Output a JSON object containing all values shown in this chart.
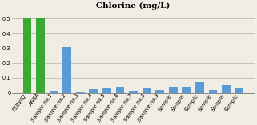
{
  "title": "Chlorine (mg/L)",
  "categories": [
    "PSDWQ",
    "ANSA",
    "Sample no.1",
    "Sample no.2",
    "Sample no.3",
    "Sample no.4",
    "Sample no.5",
    "Sample no.6",
    "Sample no.7",
    "Sample no.8",
    "Sample no.9",
    "Sample",
    "Sample",
    "Sample",
    "Sample",
    "Sample",
    "Sample"
  ],
  "values": [
    0.51,
    0.51,
    0.015,
    0.31,
    0.01,
    0.025,
    0.03,
    0.04,
    0.015,
    0.03,
    0.02,
    0.04,
    0.04,
    0.075,
    0.02,
    0.05,
    0.03
  ],
  "bar_colors": [
    "#3aaa35",
    "#3aaa35",
    "#5b9bd5",
    "#5b9bd5",
    "#5b9bd5",
    "#5b9bd5",
    "#5b9bd5",
    "#5b9bd5",
    "#5b9bd5",
    "#5b9bd5",
    "#5b9bd5",
    "#5b9bd5",
    "#5b9bd5",
    "#5b9bd5",
    "#5b9bd5",
    "#5b9bd5",
    "#5b9bd5"
  ],
  "ylim": [
    0,
    0.55
  ],
  "yticks": [
    0,
    0.1,
    0.2,
    0.3,
    0.4,
    0.5
  ],
  "background_color": "#f0ede4",
  "plot_bg_color": "#f0ede4",
  "grid_color": "#b0b0b0",
  "title_fontsize": 7.5,
  "tick_fontsize": 4.8,
  "bar_width": 0.65
}
